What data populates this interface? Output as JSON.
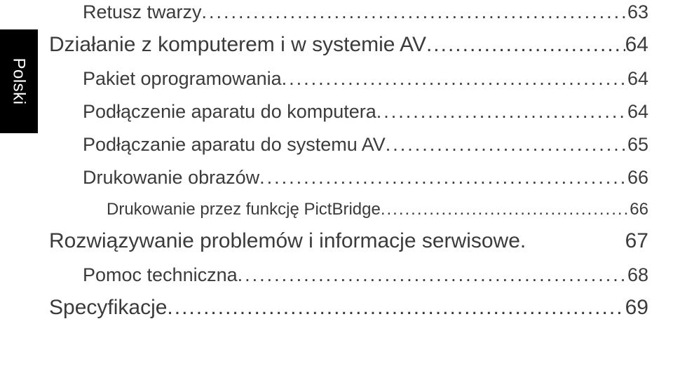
{
  "sideTab": {
    "label": "Polski"
  },
  "toc": [
    {
      "level": 2,
      "label": "Retusz twarzy",
      "page": "63",
      "first": true
    },
    {
      "level": 1,
      "label": "Działanie z komputerem i w systemie AV",
      "page": "64"
    },
    {
      "level": 2,
      "label": "Pakiet oprogramowania",
      "page": "64"
    },
    {
      "level": 2,
      "label": "Podłączenie aparatu do komputera",
      "page": "64"
    },
    {
      "level": 2,
      "label": "Podłączanie aparatu do systemu AV",
      "page": "65"
    },
    {
      "level": 2,
      "label": "Drukowanie obrazów",
      "page": "66"
    },
    {
      "level": 3,
      "label": "Drukowanie przez funkcję PictBridge",
      "page": "66"
    },
    {
      "level": 1,
      "label": "Rozwiązywanie problemów i informacje serwisowe",
      "page": "67"
    },
    {
      "level": 2,
      "label": "Pomoc techniczna",
      "page": "68"
    },
    {
      "level": 1,
      "label": "Specyfikacje",
      "page": "69"
    }
  ],
  "colors": {
    "background": "#ffffff",
    "text": "#3b3b3b",
    "tabBg": "#000000",
    "tabText": "#ffffff"
  }
}
